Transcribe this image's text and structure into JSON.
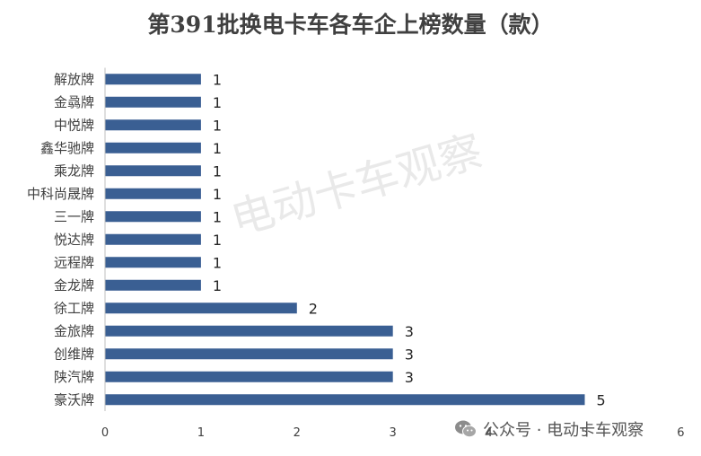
{
  "title": "第391批换电卡车各车企上榜数量（款）",
  "watermark": "电动卡车观察",
  "footer": {
    "text": "公众号 · 电动卡车观察",
    "icon": "wechat-icon"
  },
  "colors": {
    "bar": "#3a5f93",
    "axis": "#bfbfbf",
    "text": "#404040"
  },
  "chart_data": {
    "type": "bar",
    "orientation": "horizontal",
    "title": "第391批换电卡车各车企上榜数量（款）",
    "categories": [
      "解放牌",
      "金骉牌",
      "中悦牌",
      "鑫华驰牌",
      "乘龙牌",
      "中科尚晟牌",
      "三一牌",
      "悦达牌",
      "远程牌",
      "金龙牌",
      "徐工牌",
      "金旅牌",
      "创维牌",
      "陕汽牌",
      "豪沃牌"
    ],
    "values": [
      1,
      1,
      1,
      1,
      1,
      1,
      1,
      1,
      1,
      1,
      2,
      3,
      3,
      3,
      5
    ],
    "xlim": [
      0,
      6
    ],
    "xticks": [
      "0",
      "1",
      "2",
      "3",
      "4",
      "5",
      "6"
    ],
    "data_labels": true,
    "grid": false,
    "legend": "none"
  }
}
